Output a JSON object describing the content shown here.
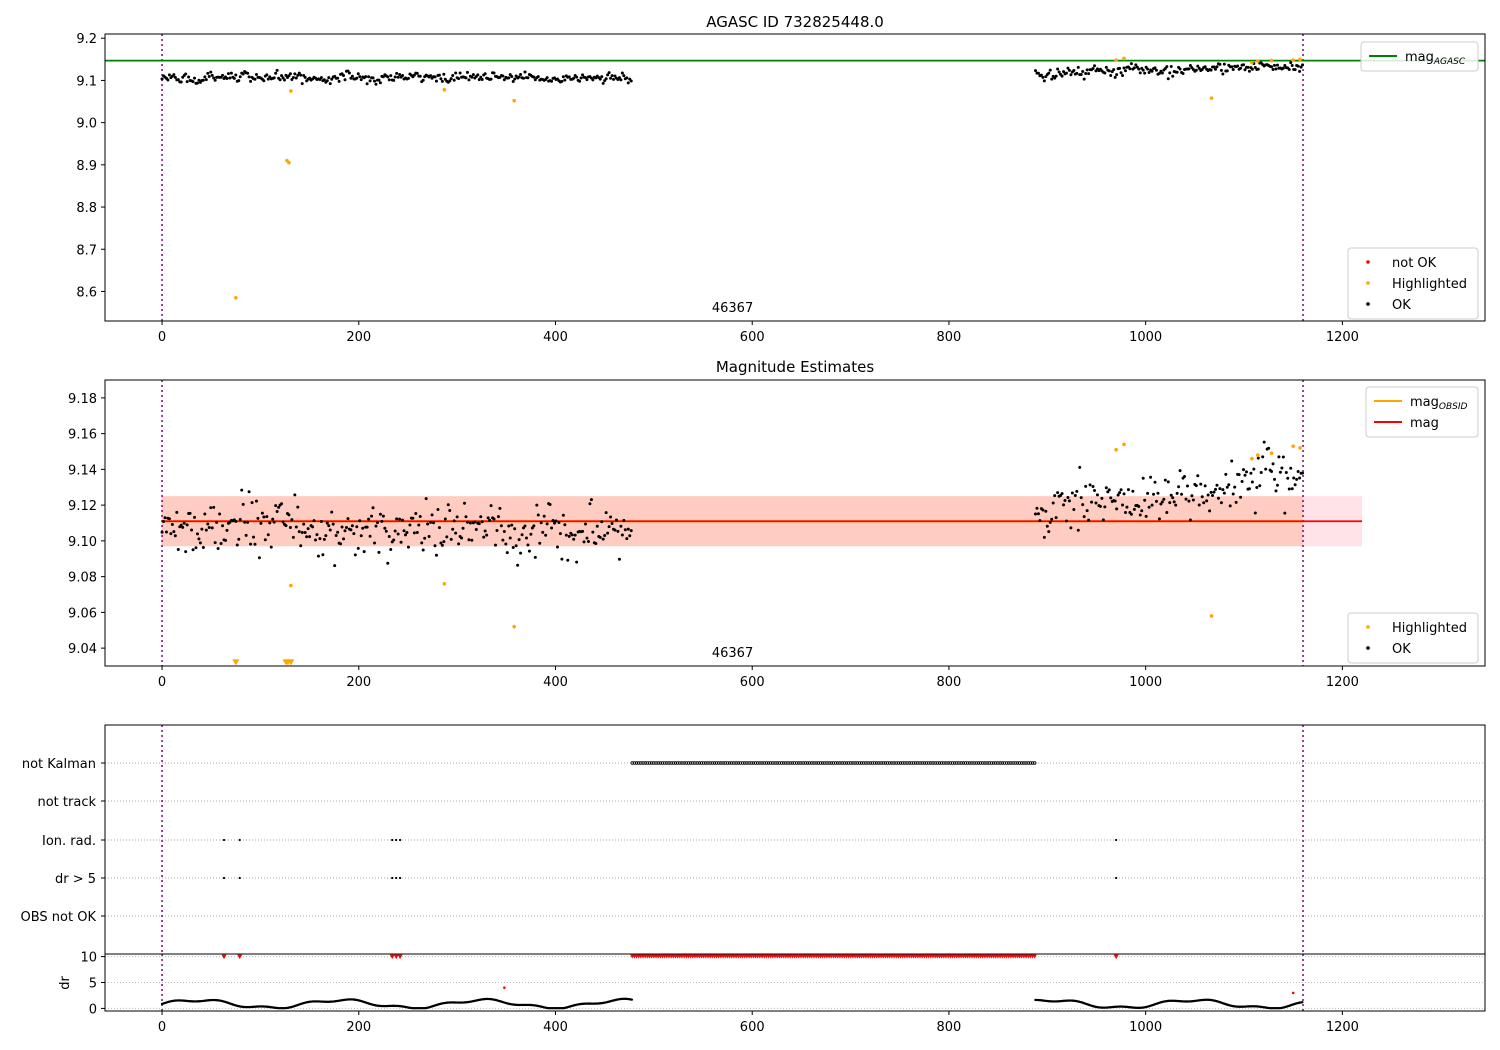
{
  "chart_data": [
    {
      "type": "scatter",
      "title": "AGASC ID 732825448.0",
      "xlim": [
        -58,
        1345
      ],
      "ylim": [
        8.53,
        9.21
      ],
      "xticks": [
        0,
        200,
        400,
        600,
        800,
        1000,
        1200
      ],
      "yticks": [
        8.6,
        8.7,
        8.8,
        8.9,
        9.0,
        9.1,
        9.2
      ],
      "ytick_labels": [
        "8.6",
        "8.7",
        "8.8",
        "8.9",
        "9.0",
        "9.1",
        "9.2"
      ],
      "obsid_label": "46367",
      "obsid_label_x": 580,
      "vlines": [
        0,
        1160
      ],
      "hline": {
        "name": "mag_AGASC",
        "value": 9.147,
        "color": "#008000"
      },
      "legends": [
        {
          "position": "upper-right",
          "entries": [
            {
              "label": "mag",
              "sub": "AGASC",
              "kind": "line",
              "color": "#008000"
            }
          ]
        },
        {
          "position": "lower-right",
          "entries": [
            {
              "label": "not OK",
              "kind": "dot",
              "color": "#ff0000"
            },
            {
              "label": "Highlighted",
              "kind": "dot",
              "color": "#ffa500"
            },
            {
              "label": "OK",
              "kind": "dot",
              "color": "#000000"
            }
          ]
        }
      ],
      "segments": [
        {
          "x0": 0,
          "x1": 478,
          "mean": 9.106,
          "noise": 0.009,
          "color": "#000000"
        },
        {
          "x0": 888,
          "x1": 1160,
          "mean": 9.118,
          "noise": 0.01,
          "trend": 0.016,
          "color": "#000000"
        }
      ],
      "highlighted": [
        {
          "x": 75,
          "y": 8.585
        },
        {
          "x": 127,
          "y": 8.91
        },
        {
          "x": 129,
          "y": 8.905
        },
        {
          "x": 131,
          "y": 9.075
        },
        {
          "x": 287,
          "y": 9.078
        },
        {
          "x": 358,
          "y": 9.052
        },
        {
          "x": 970,
          "y": 9.148
        },
        {
          "x": 978,
          "y": 9.152
        },
        {
          "x": 1067,
          "y": 9.058
        },
        {
          "x": 1108,
          "y": 9.142
        },
        {
          "x": 1114,
          "y": 9.146
        },
        {
          "x": 1128,
          "y": 9.147
        },
        {
          "x": 1150,
          "y": 9.148
        },
        {
          "x": 1157,
          "y": 9.15
        }
      ]
    },
    {
      "type": "scatter",
      "title": "Magnitude Estimates",
      "xlim": [
        -58,
        1345
      ],
      "ylim": [
        9.03,
        9.19
      ],
      "xticks": [
        0,
        200,
        400,
        600,
        800,
        1000,
        1200
      ],
      "yticks": [
        9.04,
        9.06,
        9.08,
        9.1,
        9.12,
        9.14,
        9.16,
        9.18
      ],
      "ytick_labels": [
        "9.04",
        "9.06",
        "9.08",
        "9.10",
        "9.12",
        "9.14",
        "9.16",
        "9.18"
      ],
      "obsid_label": "46367",
      "obsid_label_x": 580,
      "vlines": [
        0,
        1160
      ],
      "mag_line": {
        "name": "mag",
        "value": 9.111,
        "x0": -1,
        "x1": 1220,
        "color": "#ff0000"
      },
      "mag_obsid_line": {
        "name": "mag_OBSID",
        "value": 9.111,
        "x0": 0,
        "x1": 1160,
        "color": "#ffa500"
      },
      "bands": [
        {
          "x0": -1,
          "x1": 1220,
          "y0": 9.097,
          "y1": 9.125,
          "color": "#ffc0cb",
          "opacity": 0.45
        },
        {
          "x0": 0,
          "x1": 1160,
          "y0": 9.097,
          "y1": 9.125,
          "color": "#ffa07a",
          "opacity": 0.35
        }
      ],
      "legends": [
        {
          "position": "upper-right",
          "entries": [
            {
              "label": "mag",
              "sub": "OBSID",
              "kind": "line",
              "color": "#ffa500"
            },
            {
              "label": "mag",
              "sub": "",
              "kind": "line",
              "color": "#ff0000"
            }
          ]
        },
        {
          "position": "lower-right",
          "entries": [
            {
              "label": "Highlighted",
              "kind": "dot",
              "color": "#ffa500"
            },
            {
              "label": "OK",
              "kind": "dot",
              "color": "#000000"
            }
          ]
        }
      ],
      "segments": [
        {
          "x0": 0,
          "x1": 478,
          "mean": 9.106,
          "noise": 0.011,
          "color": "#000000"
        },
        {
          "x0": 888,
          "x1": 1160,
          "mean": 9.118,
          "noise": 0.011,
          "trend": 0.016,
          "color": "#000000"
        }
      ],
      "highlighted": [
        {
          "x": 131,
          "y": 9.075
        },
        {
          "x": 287,
          "y": 9.076
        },
        {
          "x": 358,
          "y": 9.052
        },
        {
          "x": 970,
          "y": 9.151
        },
        {
          "x": 978,
          "y": 9.154
        },
        {
          "x": 1067,
          "y": 9.058
        },
        {
          "x": 1108,
          "y": 9.146
        },
        {
          "x": 1114,
          "y": 9.148
        },
        {
          "x": 1128,
          "y": 9.149
        },
        {
          "x": 1150,
          "y": 9.153
        },
        {
          "x": 1157,
          "y": 9.152
        }
      ],
      "low_markers": [
        {
          "x": 75,
          "y": 9.032
        },
        {
          "x": 126,
          "y": 9.032
        },
        {
          "x": 128,
          "y": 9.032
        },
        {
          "x": 131,
          "y": 9.032
        }
      ]
    },
    {
      "type": "scatter",
      "title": "",
      "xlim": [
        -58,
        1345
      ],
      "categories": [
        "not Kalman",
        "not track",
        "Ion. rad.",
        "dr > 5",
        "OBS not OK"
      ],
      "flags": {
        "not Kalman": [
          {
            "x0": 478,
            "x1": 888
          }
        ],
        "not track": [],
        "Ion. rad.": [
          {
            "x": 63
          },
          {
            "x": 79
          },
          {
            "x": 234
          },
          {
            "x": 238
          },
          {
            "x": 242
          },
          {
            "x": 970
          }
        ],
        "dr > 5": [
          {
            "x": 63
          },
          {
            "x": 79
          },
          {
            "x": 234
          },
          {
            "x": 238
          },
          {
            "x": 242
          },
          {
            "x": 970
          }
        ],
        "OBS not OK": []
      },
      "vlines": [
        0,
        1160
      ]
    },
    {
      "type": "scatter",
      "title": "",
      "ylabel": "dr",
      "xlim": [
        -58,
        1345
      ],
      "ylim": [
        -0.5,
        10.5
      ],
      "xticks": [
        0,
        200,
        400,
        600,
        800,
        1000,
        1200
      ],
      "yticks": [
        0,
        5,
        10
      ],
      "ytick_labels": [
        "0",
        "5",
        "10"
      ],
      "vlines": [
        0,
        1160
      ],
      "red_clip_range": {
        "x0": 478,
        "x1": 888,
        "y": 10
      },
      "red_points": [
        {
          "x": 63,
          "y": 10
        },
        {
          "x": 79,
          "y": 10
        },
        {
          "x": 234,
          "y": 10
        },
        {
          "x": 238,
          "y": 10
        },
        {
          "x": 242,
          "y": 10
        },
        {
          "x": 348,
          "y": 4
        },
        {
          "x": 970,
          "y": 10
        },
        {
          "x": 1150,
          "y": 3
        }
      ],
      "segments": [
        {
          "x0": 0,
          "x1": 478,
          "color": "#000000"
        },
        {
          "x0": 888,
          "x1": 1160,
          "color": "#000000"
        }
      ]
    }
  ]
}
